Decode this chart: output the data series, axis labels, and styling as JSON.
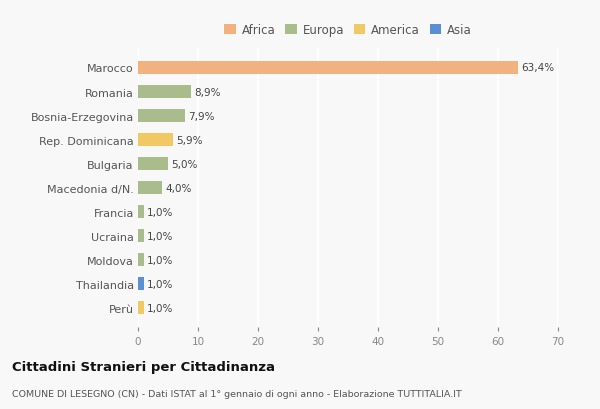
{
  "countries": [
    "Marocco",
    "Romania",
    "Bosnia-Erzegovina",
    "Rep. Dominicana",
    "Bulgaria",
    "Macedonia d/N.",
    "Francia",
    "Ucraina",
    "Moldova",
    "Thailandia",
    "Perù"
  ],
  "values": [
    63.4,
    8.9,
    7.9,
    5.9,
    5.0,
    4.0,
    1.0,
    1.0,
    1.0,
    1.0,
    1.0
  ],
  "labels": [
    "63,4%",
    "8,9%",
    "7,9%",
    "5,9%",
    "5,0%",
    "4,0%",
    "1,0%",
    "1,0%",
    "1,0%",
    "1,0%",
    "1,0%"
  ],
  "colors": [
    "#F2B280",
    "#A8BC8C",
    "#A8BC8C",
    "#F0C864",
    "#A8BC8C",
    "#A8BC8C",
    "#A8BC8C",
    "#A8BC8C",
    "#A8BC8C",
    "#5B8FD4",
    "#F0C864"
  ],
  "legend_labels": [
    "Africa",
    "Europa",
    "America",
    "Asia"
  ],
  "legend_colors": [
    "#F2B280",
    "#A8BC8C",
    "#F0C864",
    "#5B8FD4"
  ],
  "xlim": [
    0,
    70
  ],
  "xticks": [
    0,
    10,
    20,
    30,
    40,
    50,
    60,
    70
  ],
  "title": "Cittadini Stranieri per Cittadinanza",
  "subtitle": "COMUNE DI LESEGNO (CN) - Dati ISTAT al 1° gennaio di ogni anno - Elaborazione TUTTITALIA.IT",
  "background_color": "#f8f8f8",
  "grid_color": "#ffffff",
  "bar_height": 0.55
}
